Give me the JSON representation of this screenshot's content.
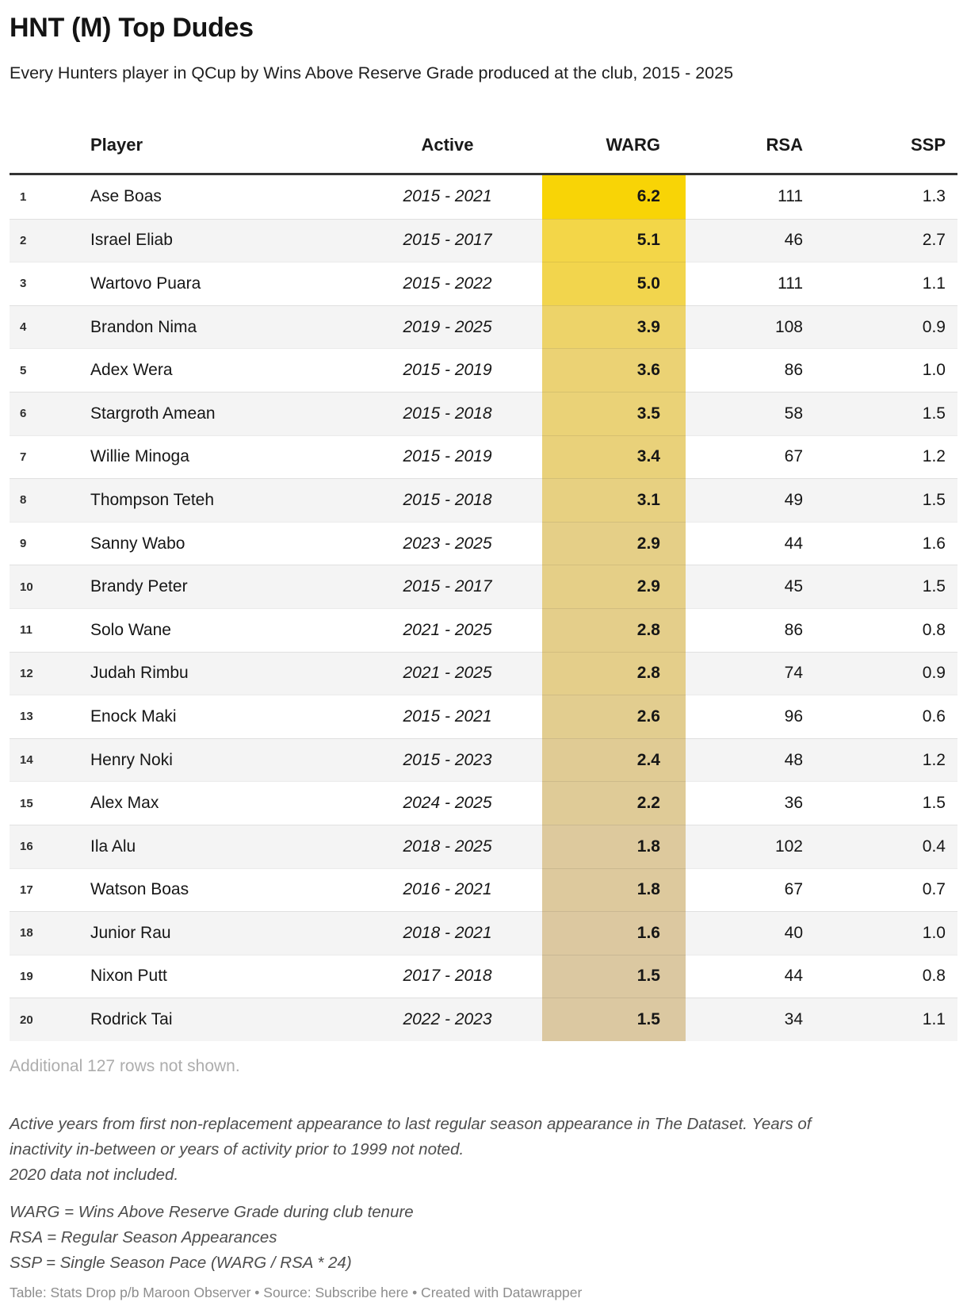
{
  "title": "HNT (M) Top Dudes",
  "subtitle": "Every Hunters player in QCup by Wins Above Reserve Grade produced at the club, 2015 - 2025",
  "chart_data": {
    "type": "table",
    "title": "HNT (M) Top Dudes",
    "columns": {
      "rank": "",
      "player": "Player",
      "active": "Active",
      "warg": "WARG",
      "rsa": "RSA",
      "ssp": "SSP"
    },
    "warg_heatmap": {
      "max_color": "#f8d406",
      "min_color": "#dbc8a1",
      "max_value": 6.2,
      "min_value": 1.5
    },
    "rows": [
      {
        "rank": "1",
        "player": "Ase Boas",
        "active": "2015 - 2021",
        "warg": "6.2",
        "rsa": "111",
        "ssp": "1.3",
        "warg_color": "#f8d406"
      },
      {
        "rank": "2",
        "player": "Israel Eliab",
        "active": "2015 - 2017",
        "warg": "5.1",
        "rsa": "46",
        "ssp": "2.7",
        "warg_color": "#f3d648"
      },
      {
        "rank": "3",
        "player": "Wartovo Puara",
        "active": "2015 - 2022",
        "warg": "5.0",
        "rsa": "111",
        "ssp": "1.1",
        "warg_color": "#f2d54d"
      },
      {
        "rank": "4",
        "player": "Brandon Nima",
        "active": "2019 - 2025",
        "warg": "3.9",
        "rsa": "108",
        "ssp": "0.9",
        "warg_color": "#edd369"
      },
      {
        "rank": "5",
        "player": "Adex Wera",
        "active": "2015 - 2019",
        "warg": "3.6",
        "rsa": "86",
        "ssp": "1.0",
        "warg_color": "#ebd274"
      },
      {
        "rank": "6",
        "player": "Stargroth Amean",
        "active": "2015 - 2018",
        "warg": "3.5",
        "rsa": "58",
        "ssp": "1.5",
        "warg_color": "#ead277"
      },
      {
        "rank": "7",
        "player": "Willie Minoga",
        "active": "2015 - 2019",
        "warg": "3.4",
        "rsa": "67",
        "ssp": "1.2",
        "warg_color": "#e9d17a"
      },
      {
        "rank": "8",
        "player": "Thompson Teteh",
        "active": "2015 - 2018",
        "warg": "3.1",
        "rsa": "49",
        "ssp": "1.5",
        "warg_color": "#e7d081"
      },
      {
        "rank": "9",
        "player": "Sanny Wabo",
        "active": "2023 - 2025",
        "warg": "2.9",
        "rsa": "44",
        "ssp": "1.6",
        "warg_color": "#e5cf87"
      },
      {
        "rank": "10",
        "player": "Brandy Peter",
        "active": "2015 - 2017",
        "warg": "2.9",
        "rsa": "45",
        "ssp": "1.5",
        "warg_color": "#e5cf87"
      },
      {
        "rank": "11",
        "player": "Solo Wane",
        "active": "2021 - 2025",
        "warg": "2.8",
        "rsa": "86",
        "ssp": "0.8",
        "warg_color": "#e4ce8a"
      },
      {
        "rank": "12",
        "player": "Judah Rimbu",
        "active": "2021 - 2025",
        "warg": "2.8",
        "rsa": "74",
        "ssp": "0.9",
        "warg_color": "#e4ce8a"
      },
      {
        "rank": "13",
        "player": "Enock Maki",
        "active": "2015 - 2021",
        "warg": "2.6",
        "rsa": "96",
        "ssp": "0.6",
        "warg_color": "#e2cd8f"
      },
      {
        "rank": "14",
        "player": "Henry Noki",
        "active": "2015 - 2023",
        "warg": "2.4",
        "rsa": "48",
        "ssp": "1.2",
        "warg_color": "#e0cb94"
      },
      {
        "rank": "15",
        "player": "Alex Max",
        "active": "2024 - 2025",
        "warg": "2.2",
        "rsa": "36",
        "ssp": "1.5",
        "warg_color": "#dfcb97"
      },
      {
        "rank": "16",
        "player": "Ila Alu",
        "active": "2018 - 2025",
        "warg": "1.8",
        "rsa": "102",
        "ssp": "0.4",
        "warg_color": "#ddc99d"
      },
      {
        "rank": "17",
        "player": "Watson Boas",
        "active": "2016 - 2021",
        "warg": "1.8",
        "rsa": "67",
        "ssp": "0.7",
        "warg_color": "#ddc99d"
      },
      {
        "rank": "18",
        "player": "Junior Rau",
        "active": "2018 - 2021",
        "warg": "1.6",
        "rsa": "40",
        "ssp": "1.0",
        "warg_color": "#dcc8a0"
      },
      {
        "rank": "19",
        "player": "Nixon Putt",
        "active": "2017 - 2018",
        "warg": "1.5",
        "rsa": "44",
        "ssp": "0.8",
        "warg_color": "#dbc8a1"
      },
      {
        "rank": "20",
        "player": "Rodrick Tai",
        "active": "2022 - 2023",
        "warg": "1.5",
        "rsa": "34",
        "ssp": "1.1",
        "warg_color": "#dbc8a1"
      }
    ]
  },
  "notes": {
    "additional_rows": "Additional 127 rows not shown.",
    "footnote_para": "Active years from first non-replacement appearance to last regular season appearance in The Dataset. Years of inactivity in-between or years of activity prior to 1999 not noted.",
    "footnote_line2": "2020 data not included.",
    "abbrev_warg": "WARG = Wins Above Reserve Grade during club tenure",
    "abbrev_rsa": "RSA = Regular Season Appearances",
    "abbrev_ssp": "SSP = Single Season Pace (WARG / RSA * 24)",
    "caption_prefix": "Table: Stats Drop p/b Maroon Observer • Source: ",
    "caption_link": "Subscribe here",
    "caption_suffix": " • Created with Datawrapper"
  },
  "colors": {
    "header_rule": "#333333",
    "row_alt_bg": "#f4f4f4",
    "row_separator": "#e3e3e3",
    "additional_text": "#adadad",
    "footnote_text": "#4d4d4d",
    "caption_text": "#8d8d8d"
  }
}
